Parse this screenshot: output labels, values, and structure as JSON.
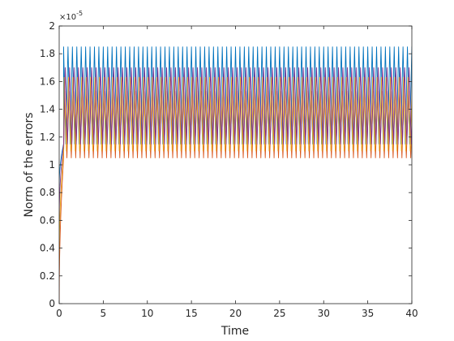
{
  "chart_data": {
    "type": "line",
    "title": "",
    "xlabel": "Time",
    "ylabel": "Norm of the errors",
    "xlim": [
      0,
      40
    ],
    "ylim": [
      0,
      2
    ],
    "y_scale_label": "×10",
    "y_scale_exponent": "-5",
    "x_ticks": [
      "0",
      "5",
      "10",
      "15",
      "20",
      "25",
      "30",
      "35",
      "40"
    ],
    "y_ticks": [
      "0",
      "0.2",
      "0.4",
      "0.6",
      "0.8",
      "1",
      "1.2",
      "1.4",
      "1.6",
      "1.8",
      "2"
    ],
    "grid": false,
    "series": [
      {
        "color": "#0072BD",
        "period": 0.5,
        "min": 1.15,
        "max": 1.85,
        "phase": 0.0,
        "transient": {
          "start": 0.85,
          "end_time": 0.5
        }
      },
      {
        "color": "#D95319",
        "period": 0.5,
        "min": 1.05,
        "max": 1.53,
        "phase": 0.25,
        "transient": {
          "start": 0.0,
          "end_time": 0.5
        }
      },
      {
        "color": "#EDB120",
        "period": 0.5,
        "min": 1.1,
        "max": 1.63,
        "phase": 0.12,
        "transient": {
          "start": 0.3,
          "end_time": 0.5
        }
      },
      {
        "color": "#7E2F8E",
        "period": 0.5,
        "min": 1.15,
        "max": 1.7,
        "phase": 0.37,
        "transient": {
          "start": 0.6,
          "end_time": 0.5
        }
      }
    ]
  }
}
